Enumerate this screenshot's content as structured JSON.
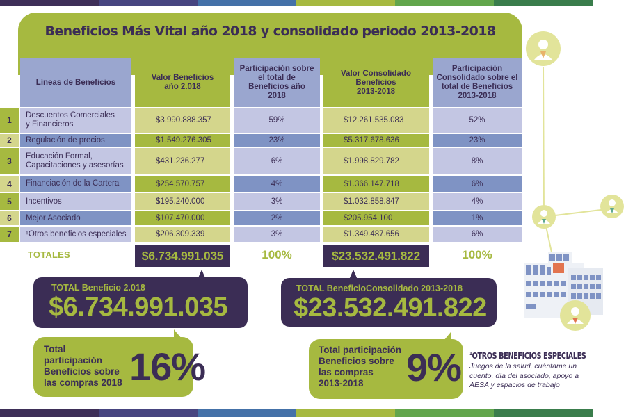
{
  "colors": {
    "purple_dark": "#3b2d55",
    "green": "#a6b940",
    "green_light": "#d4d68c",
    "blue": "#9aa6cf",
    "blue_light": "#c3c6e3",
    "blue_mid": "#7f93c4",
    "stripe": [
      "#3e2f58",
      "#474580",
      "#4471a8",
      "#a6b940",
      "#62a64c",
      "#3a7d4c"
    ]
  },
  "title": "Beneficios Más Vital año 2018 y consolidado periodo 2013-2018",
  "table": {
    "headers": {
      "lineas": "Líneas de Beneficios",
      "valor_2018": [
        "Valor Beneficios",
        "año 2.018"
      ],
      "part_2018": [
        "Participación sobre",
        "el total de",
        "Beneficios año",
        "2018"
      ],
      "valor_consolidado": [
        "Valor Consolidado",
        "Beneficios",
        "2013-2018"
      ],
      "part_consolidado": [
        "Participación",
        "Consolidado sobre el",
        "total de Beneficios",
        "2013-2018"
      ]
    },
    "rows": [
      {
        "num": "1",
        "label": [
          "Descuentos Comerciales",
          "y Financieros"
        ],
        "valor_2018": "$3.990.888.357",
        "part_2018": "59%",
        "valor_consolidado": "$12.261.535.083",
        "part_consolidado": "52%"
      },
      {
        "num": "2",
        "label": [
          "Regulación de precios"
        ],
        "valor_2018": "$1.549.276.305",
        "part_2018": "23%",
        "valor_consolidado": "$5.317.678.636",
        "part_consolidado": "23%"
      },
      {
        "num": "3",
        "label": [
          "Educación Formal,",
          "Capacitaciones y asesorías"
        ],
        "valor_2018": "$431.236.277",
        "part_2018": "6%",
        "valor_consolidado": "$1.998.829.782",
        "part_consolidado": "8%"
      },
      {
        "num": "4",
        "label": [
          "Financiación de la Cartera"
        ],
        "valor_2018": "$254.570.757",
        "part_2018": "4%",
        "valor_consolidado": "$1.366.147.718",
        "part_consolidado": "6%"
      },
      {
        "num": "5",
        "label": [
          "Incentivos"
        ],
        "valor_2018": "$195.240.000",
        "part_2018": "3%",
        "valor_consolidado": "$1.032.858.847",
        "part_consolidado": "4%"
      },
      {
        "num": "6",
        "label": [
          "Mejor Asociado"
        ],
        "valor_2018": "$107.470.000",
        "part_2018": "2%",
        "valor_consolidado": "$205.954.100",
        "part_consolidado": "1%"
      },
      {
        "num": "7",
        "label": [
          "¹Otros beneficios especiales"
        ],
        "valor_2018": "$206.309.339",
        "part_2018": "3%",
        "valor_consolidado": "$1.349.487.656",
        "part_consolidado": "6%"
      }
    ],
    "totals": {
      "label": "TOTALES",
      "valor_2018": "$6.734.991.035",
      "part_2018": "100%",
      "valor_consolidado": "$23.532.491.822",
      "part_consolidado": "100%"
    }
  },
  "callouts": {
    "total_2018": {
      "label": "TOTAL Beneficio 2.018",
      "value": "$6.734.991.035"
    },
    "total_consolidado": {
      "label": "TOTAL BeneficioConsolidado  2013-2018",
      "value": "$23.532.491.822"
    },
    "part_2018": {
      "text": [
        "Total",
        "participación",
        "Beneficios sobre",
        "las compras 2018"
      ],
      "value": "16%"
    },
    "part_consolidado": {
      "text": [
        "Total participación",
        "Beneficios sobre",
        "las compras",
        "2013-2018"
      ],
      "value": "9%"
    }
  },
  "footnote": {
    "marker": "1",
    "title": "OTROS BENEFICIOS ESPECIALES",
    "body": "Juegos de la salud, cuéntame un cuento, día del asociado, apoyo a AESA y espacios de trabajo"
  },
  "illustration": {
    "icons": [
      "person-icon",
      "person-icon",
      "person-icon",
      "person-icon",
      "building-icon"
    ]
  }
}
